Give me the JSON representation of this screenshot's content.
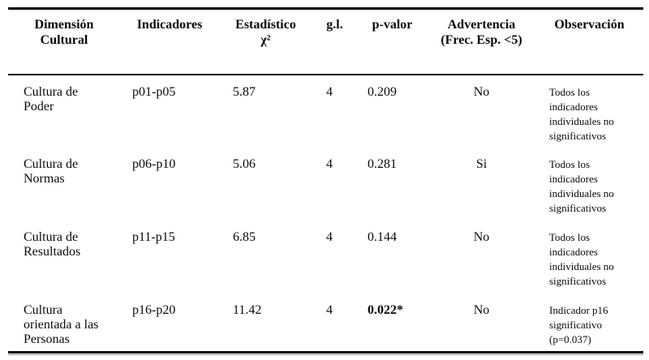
{
  "page": {
    "background": "#ffffff",
    "text_color": "#0a0a0a",
    "rule_color": "#000000"
  },
  "table": {
    "headers": [
      {
        "label": "Dimensión\nCultural"
      },
      {
        "label": "Indicadores"
      },
      {
        "label": "Estadístico\nχ²"
      },
      {
        "label": "g.l."
      },
      {
        "label": "p-valor"
      },
      {
        "label": "Advertencia\n(Frec. Esp. <5)"
      },
      {
        "label": "Observación"
      }
    ],
    "rows": [
      {
        "dimension": "Cultura de\nPoder",
        "indicadores": "p01-p05",
        "estadistico": "5.87",
        "gl": "4",
        "p_valor": "0.209",
        "p_valor_bold": false,
        "advertencia": "No",
        "observacion": "Todos los\nindicadores\nindividuales no\nsignificativos"
      },
      {
        "dimension": "Cultura de\nNormas",
        "indicadores": "p06-p10",
        "estadistico": "5.06",
        "gl": "4",
        "p_valor": "0.281",
        "p_valor_bold": false,
        "advertencia": "Si",
        "observacion": "Todos los\nindicadores\nindividuales no\nsignificativos"
      },
      {
        "dimension": "Cultura de\nResultados",
        "indicadores": "p11-p15",
        "estadistico": "6.85",
        "gl": "4",
        "p_valor": "0.144",
        "p_valor_bold": false,
        "advertencia": "No",
        "observacion": "Todos los\nindicadores\nindividuales no\nsignificativos"
      },
      {
        "dimension": "Cultura\norientada a las\nPersonas",
        "indicadores": "p16-p20",
        "estadistico": "11.42",
        "gl": "4",
        "p_valor": "0.022*",
        "p_valor_bold": true,
        "advertencia": "No",
        "observacion": "Indicador p16\nsignificativo\n(p=0.037)"
      }
    ]
  }
}
